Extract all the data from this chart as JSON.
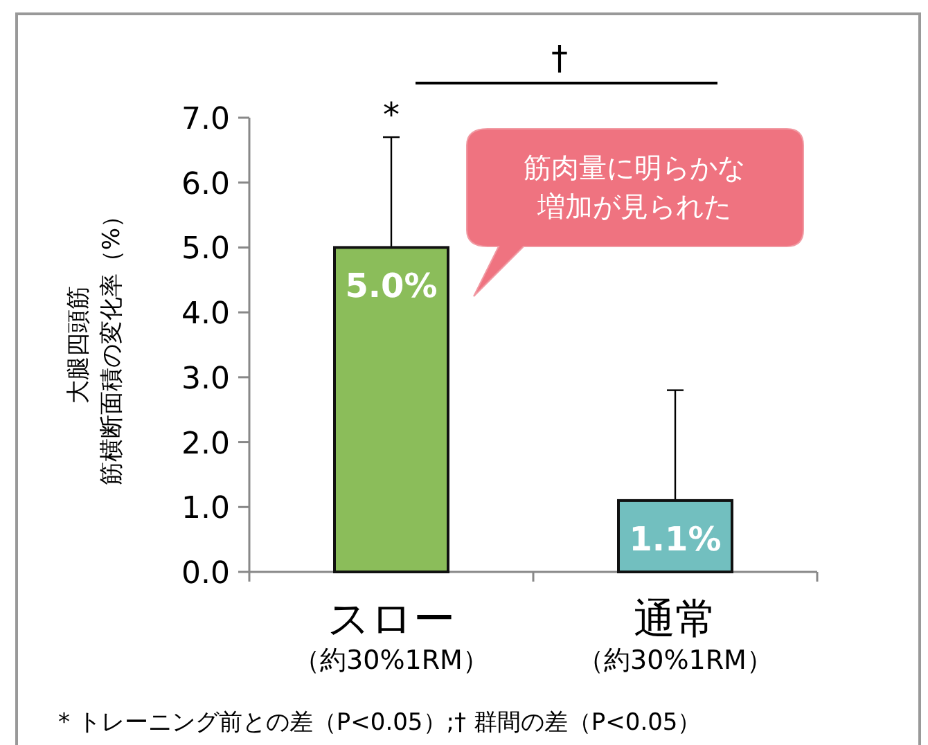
{
  "chart_data": {
    "type": "bar",
    "categories": [
      "スロー",
      "通常"
    ],
    "values": [
      5.0,
      1.1
    ],
    "colors": [
      "#8bbd5a",
      "#72bfbf"
    ],
    "errors": [
      [
        5.0,
        6.7
      ],
      [
        1.1,
        2.8
      ]
    ],
    "value_labels": [
      "5.0%",
      "1.1%"
    ],
    "ylabel": "大腿四頭筋筋横断面積の変化率（%）",
    "ylim": [
      0,
      7
    ],
    "yticks": [
      {
        "value": 0,
        "label": "0.0"
      },
      {
        "value": 1,
        "label": "1.0"
      },
      {
        "value": 2,
        "label": "2.0"
      },
      {
        "value": 3,
        "label": "3.0"
      },
      {
        "value": 4,
        "label": "4.0"
      },
      {
        "value": 5,
        "label": "5.0"
      },
      {
        "value": 6,
        "label": "6.0"
      },
      {
        "value": 7,
        "label": "7.0"
      }
    ],
    "grid": false,
    "annotations": [
      {
        "text": "*",
        "x": "スロー",
        "y": 6.7
      },
      "†",
      "筋肉量に明らかな増加が見られた",
      "* トレーニング前との差（P<0.05）;† 群間の差（P<0.05）",
      "（約30%1RM）",
      "（約30%1RM）"
    ]
  }
}
